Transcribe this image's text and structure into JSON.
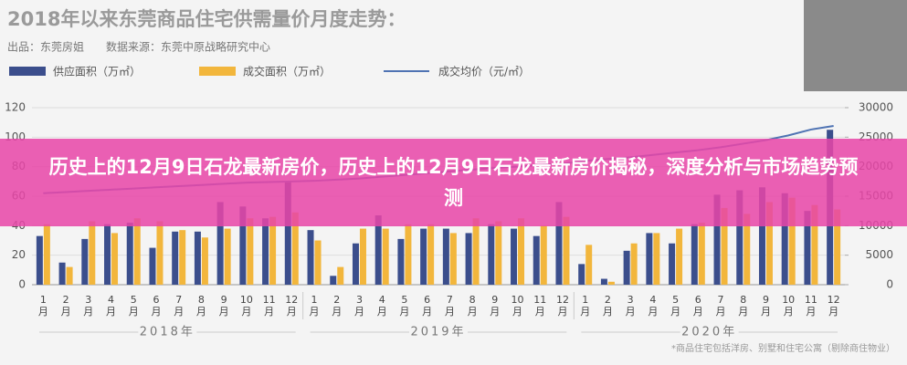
{
  "chart_data": {
    "type": "bar",
    "title": "2018年以来东莞商品住宅供需量价月度走势：",
    "subtitle": "出品：东莞房姐　　数据来源：东莞中原战略研究中心",
    "categories": [
      "1月",
      "2月",
      "3月",
      "4月",
      "5月",
      "6月",
      "7月",
      "8月",
      "9月",
      "10月",
      "11月",
      "12月",
      "1月",
      "2月",
      "3月",
      "4月",
      "5月",
      "6月",
      "7月",
      "8月",
      "9月",
      "10月",
      "11月",
      "12月",
      "1月",
      "2月",
      "3月",
      "4月",
      "5月",
      "6月",
      "7月",
      "8月",
      "9月",
      "10月",
      "11月",
      "12月"
    ],
    "years": [
      "2018年",
      "2019年",
      "2020年"
    ],
    "series": [
      {
        "name": "供应面积（万㎡）",
        "color": "#3b4e8c",
        "values": [
          33,
          15,
          31,
          41,
          42,
          25,
          36,
          36,
          56,
          53,
          45,
          70,
          37,
          6,
          28,
          47,
          31,
          38,
          38,
          35,
          41,
          38,
          33,
          56,
          14,
          4,
          23,
          35,
          28,
          41,
          61,
          64,
          66,
          62,
          50,
          105
        ]
      },
      {
        "name": "成交面积（万㎡）",
        "color": "#f2b63c",
        "values": [
          41,
          12,
          43,
          35,
          45,
          43,
          37,
          32,
          38,
          45,
          46,
          49,
          30,
          12,
          38,
          38,
          41,
          41,
          35,
          45,
          43,
          45,
          40,
          46,
          27,
          2,
          28,
          35,
          38,
          42,
          52,
          48,
          56,
          59,
          54,
          51
        ]
      },
      {
        "name": "成交均价（元/㎡）",
        "color": "#4f73b3",
        "type": "line",
        "axis": "y2",
        "values": [
          15500,
          15700,
          15900,
          16100,
          16300,
          16500,
          16700,
          16900,
          17100,
          17300,
          17400,
          17500,
          17600,
          17800,
          18000,
          18300,
          18600,
          18900,
          19200,
          19500,
          19800,
          20000,
          20300,
          20500,
          21000,
          21300,
          21600,
          22000,
          22400,
          22800,
          23300,
          23900,
          24500,
          25300,
          26300,
          26900
        ]
      }
    ],
    "ylim": [
      0,
      120
    ],
    "yticks": [
      0,
      20,
      40,
      60,
      80,
      100,
      120
    ],
    "y2lim": [
      0,
      30000
    ],
    "y2ticks": [
      0,
      5000,
      10000,
      15000,
      20000,
      25000,
      30000
    ],
    "grid": true,
    "footnote": "*商品住宅包括洋房、别墅和住宅公寓（剔除商住物业）"
  },
  "banner": {
    "text": "历史上的12月9日石龙最新房价，历史上的12月9日石龙最新房价揭秘，深度分析与市场趋势预测"
  }
}
